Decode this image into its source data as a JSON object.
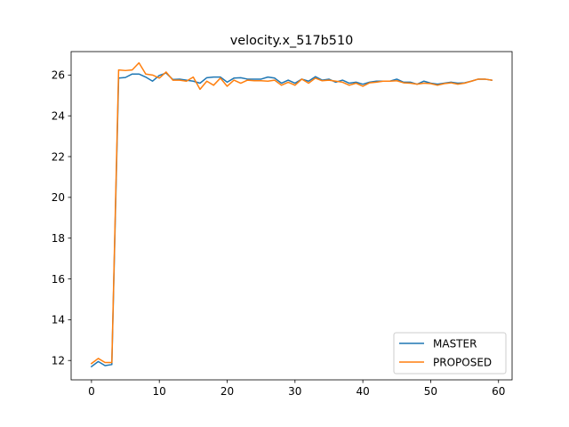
{
  "chart_data": {
    "type": "line",
    "title": "velocity.x_517b510",
    "xlabel": "",
    "ylabel": "",
    "xlim": [
      -3,
      62
    ],
    "ylim": [
      11.05,
      27.15
    ],
    "xticks": [
      0,
      10,
      20,
      30,
      40,
      50,
      60
    ],
    "yticks": [
      12,
      14,
      16,
      18,
      20,
      22,
      24,
      26
    ],
    "grid": false,
    "legend_position": "lower-right",
    "series": [
      {
        "name": "MASTER",
        "color": "#1f77b4",
        "x": [
          0,
          1,
          2,
          3,
          4,
          5,
          6,
          7,
          8,
          9,
          10,
          11,
          12,
          13,
          14,
          15,
          16,
          17,
          18,
          19,
          20,
          21,
          22,
          23,
          24,
          25,
          26,
          27,
          28,
          29,
          30,
          31,
          32,
          33,
          34,
          35,
          36,
          37,
          38,
          39,
          40,
          41,
          42,
          43,
          44,
          45,
          46,
          47,
          48,
          49,
          50,
          51,
          52,
          53,
          54,
          55,
          56,
          57,
          58,
          59
        ],
        "values": [
          11.7,
          11.95,
          11.75,
          11.8,
          25.85,
          25.88,
          26.05,
          26.05,
          25.9,
          25.7,
          25.98,
          26.1,
          25.78,
          25.8,
          25.75,
          25.7,
          25.6,
          25.87,
          25.9,
          25.9,
          25.65,
          25.85,
          25.87,
          25.8,
          25.8,
          25.8,
          25.9,
          25.85,
          25.6,
          25.75,
          25.6,
          25.8,
          25.7,
          25.92,
          25.75,
          25.8,
          25.65,
          25.75,
          25.6,
          25.65,
          25.55,
          25.65,
          25.7,
          25.7,
          25.7,
          25.8,
          25.65,
          25.65,
          25.55,
          25.7,
          25.6,
          25.55,
          25.6,
          25.65,
          25.6,
          25.62,
          25.7,
          25.8,
          25.8,
          25.75
        ]
      },
      {
        "name": "PROPOSED",
        "color": "#ff7f0e",
        "x": [
          0,
          1,
          2,
          3,
          4,
          5,
          6,
          7,
          8,
          9,
          10,
          11,
          12,
          13,
          14,
          15,
          16,
          17,
          18,
          19,
          20,
          21,
          22,
          23,
          24,
          25,
          26,
          27,
          28,
          29,
          30,
          31,
          32,
          33,
          34,
          35,
          36,
          37,
          38,
          39,
          40,
          41,
          42,
          43,
          44,
          45,
          46,
          47,
          48,
          49,
          50,
          51,
          52,
          53,
          54,
          55,
          56,
          57,
          58,
          59
        ],
        "values": [
          11.85,
          12.1,
          11.9,
          11.9,
          26.25,
          26.22,
          26.25,
          26.6,
          26.05,
          26,
          25.85,
          26.15,
          25.75,
          25.75,
          25.7,
          25.9,
          25.3,
          25.7,
          25.5,
          25.85,
          25.45,
          25.75,
          25.6,
          25.75,
          25.72,
          25.72,
          25.7,
          25.75,
          25.5,
          25.65,
          25.5,
          25.8,
          25.6,
          25.85,
          25.72,
          25.75,
          25.7,
          25.65,
          25.5,
          25.6,
          25.45,
          25.62,
          25.65,
          25.7,
          25.7,
          25.72,
          25.62,
          25.6,
          25.55,
          25.6,
          25.58,
          25.5,
          25.58,
          25.62,
          25.55,
          25.6,
          25.7,
          25.8,
          25.8,
          25.75
        ]
      }
    ]
  }
}
